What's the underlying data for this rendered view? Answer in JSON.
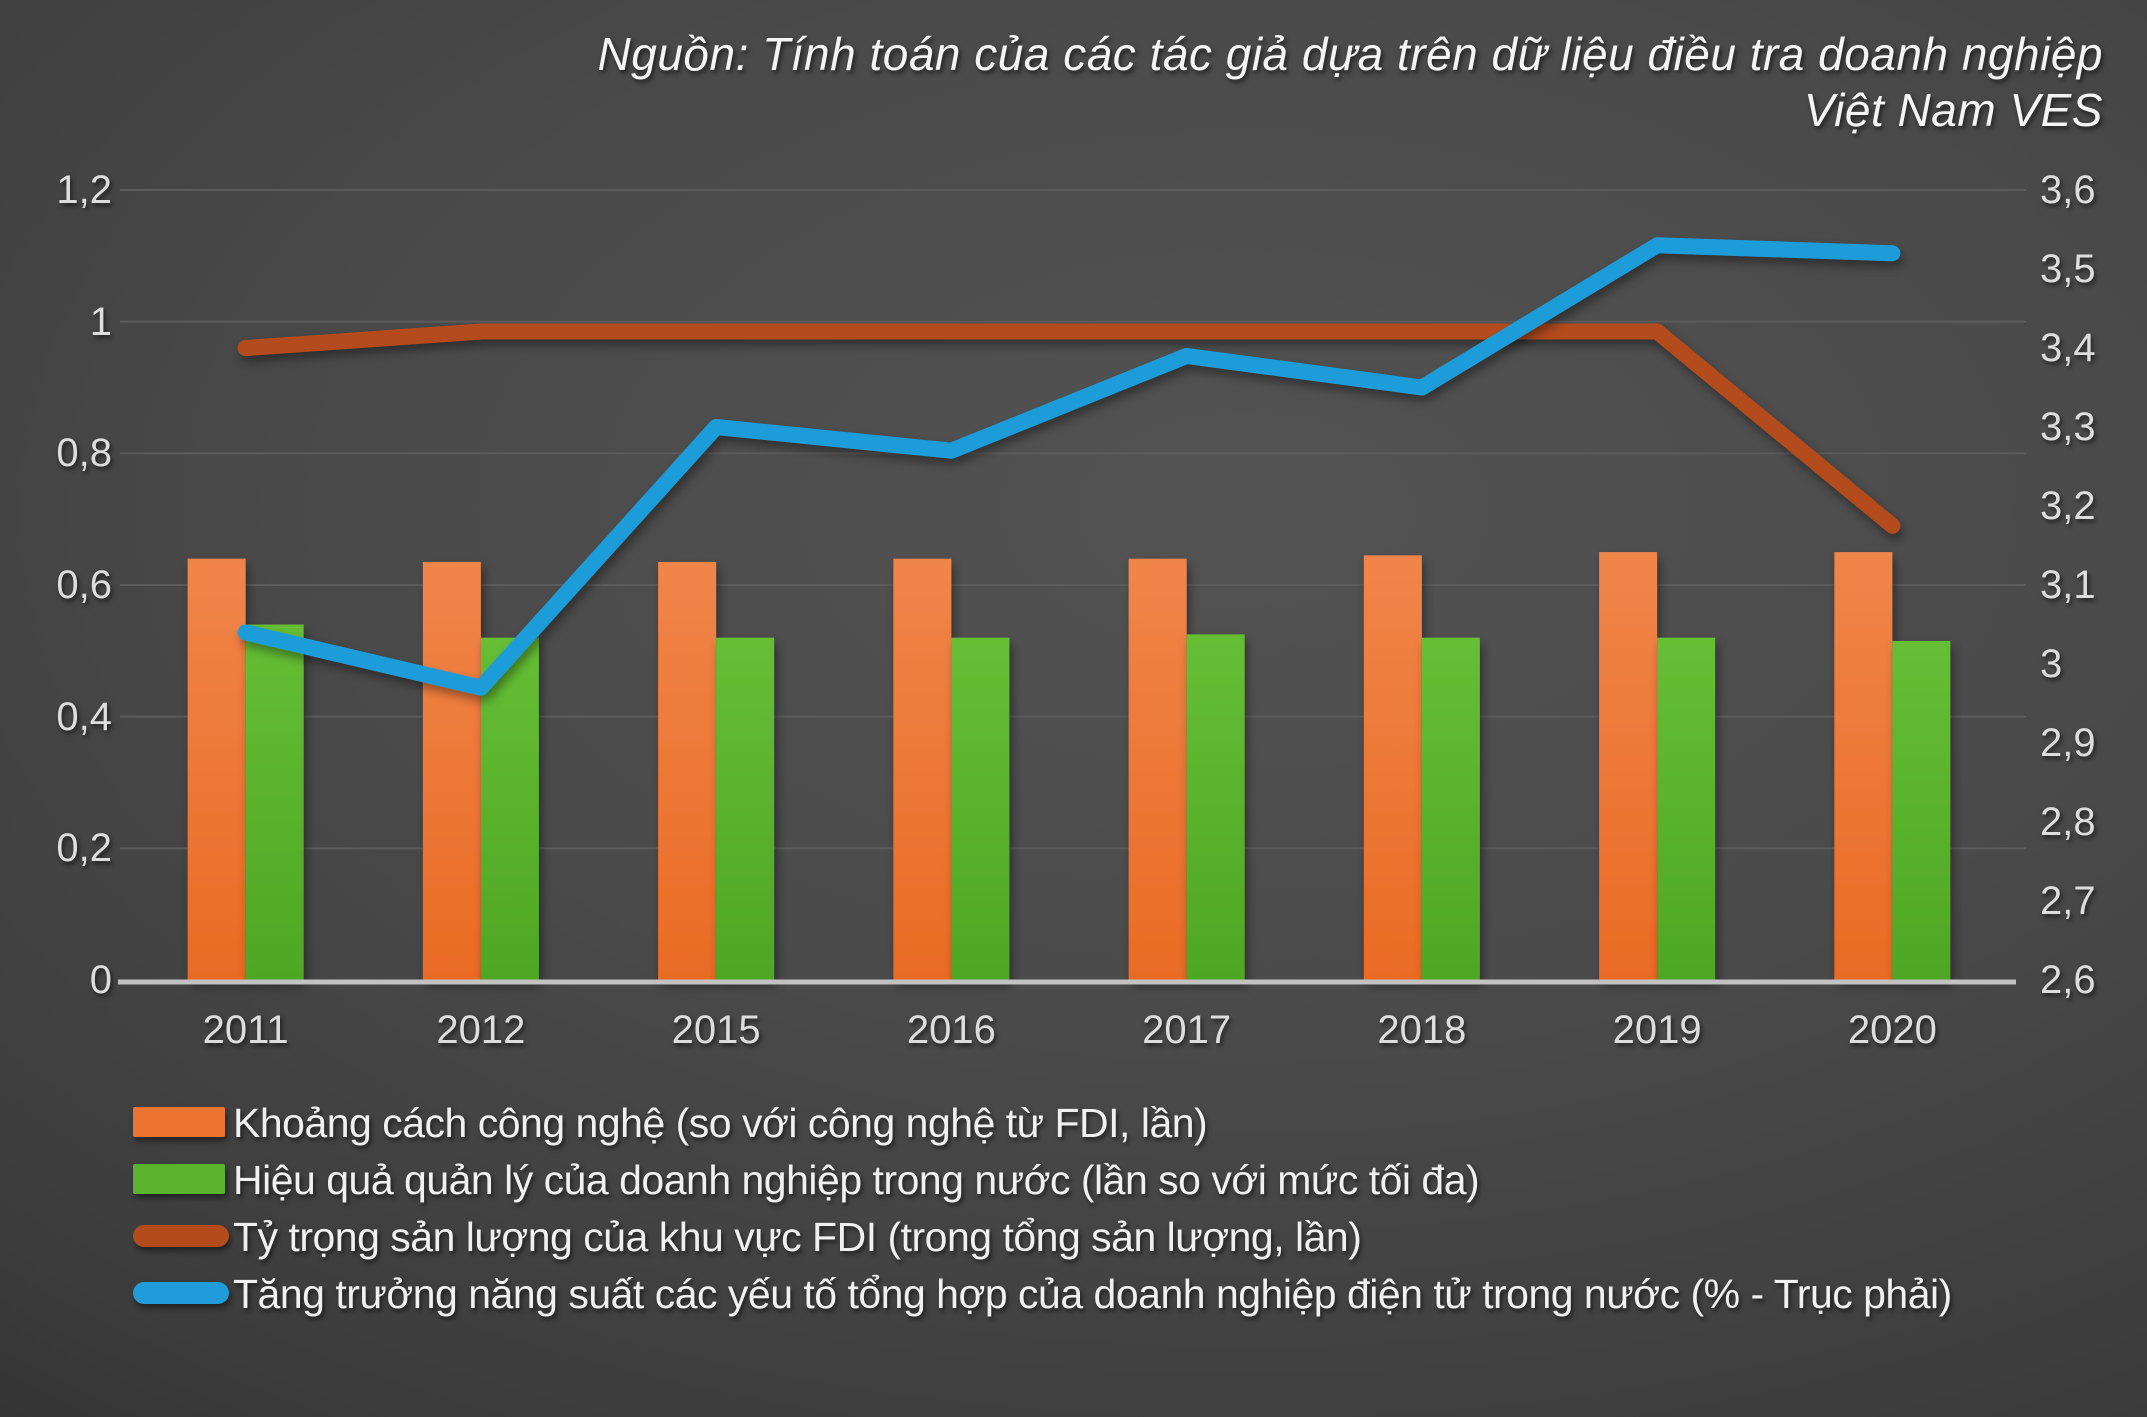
{
  "title": {
    "line1": "Nguồn: Tính toán của các tác giả dựa trên dữ liệu điều tra doanh nghiệp",
    "line2": "Việt Nam VES"
  },
  "chart_data": {
    "type": "combo (grouped bar + line, dual axis)",
    "categories": [
      "2011",
      "2012",
      "2015",
      "2016",
      "2017",
      "2018",
      "2019",
      "2020"
    ],
    "series": [
      {
        "name": "Khoảng cách công nghệ (so với công nghệ từ FDI, lần)",
        "type": "bar",
        "axis": "left",
        "color": "#ED7430",
        "values": [
          0.64,
          0.635,
          0.635,
          0.64,
          0.64,
          0.645,
          0.65,
          0.65
        ]
      },
      {
        "name": "Hiệu quả quản lý của doanh nghiệp trong nước (lần so với mức tối đa)",
        "type": "bar",
        "axis": "left",
        "color": "#5AB32C",
        "values": [
          0.54,
          0.52,
          0.52,
          0.52,
          0.525,
          0.52,
          0.52,
          0.515
        ]
      },
      {
        "name": "Tỷ trọng sản lượng của khu vực FDI (trong tổng sản lượng, lần)",
        "type": "line",
        "axis": "left",
        "color": "#B44B1A",
        "values": [
          0.96,
          0.985,
          0.985,
          0.985,
          0.985,
          0.985,
          0.985,
          0.69
        ]
      },
      {
        "name": "Tăng trưởng năng suất các yếu tố tổng hợp của doanh nghiệp điện tử trong nước (% - Trục phải)",
        "type": "line",
        "axis": "right",
        "color": "#1F9CD9",
        "values": [
          3.04,
          2.97,
          3.3,
          3.27,
          3.39,
          3.35,
          3.53,
          3.52
        ]
      }
    ],
    "left_axis": {
      "min": 0,
      "max": 1.2,
      "tick_values": [
        1.2,
        1,
        0.8,
        0.6,
        0.4,
        0.2,
        0
      ],
      "tick_labels": [
        "1,2",
        "1",
        "0,8",
        "0,6",
        "0,4",
        "0,2",
        "0"
      ]
    },
    "right_axis": {
      "min": 2.6,
      "max": 3.6,
      "tick_values": [
        3.6,
        3.5,
        3.4,
        3.3,
        3.2,
        3.1,
        3,
        2.9,
        2.8,
        2.7,
        2.6
      ],
      "tick_labels": [
        "3,6",
        "3,5",
        "3,4",
        "3,3",
        "3,2",
        "3,1",
        "3",
        "2,9",
        "2,8",
        "2,7",
        "2,6"
      ]
    },
    "grid": true,
    "legend_position": "bottom-left"
  },
  "style_colors": {
    "background_center": "#4a4a4a",
    "background_edge": "#141414",
    "gridline": "#5c5c5c",
    "axis_line": "#c2c2c2",
    "text": "#dddddd"
  }
}
